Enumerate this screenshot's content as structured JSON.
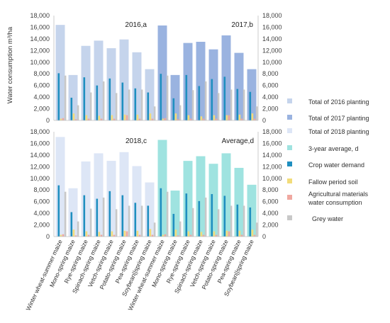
{
  "chart_data": {
    "type": "bar",
    "ylabel": "Water consumption  m³/ha",
    "ylim": [
      0,
      18000
    ],
    "yticks": [
      0,
      2000,
      4000,
      6000,
      8000,
      10000,
      12000,
      14000,
      16000,
      18000
    ],
    "ytick_labels": [
      "0",
      "2,000",
      "4,000",
      "6,000",
      "8,000",
      "10,000",
      "12,000",
      "14,000",
      "16,000",
      "18,000"
    ],
    "categories": [
      "Winter wheat-summer maize",
      "Mono-spring maize",
      "Rye-spring maize",
      "Spinach-spring maize",
      "Vetch-spring maize",
      "Potato-spring maize",
      "Pea-spring maize",
      "Soybean||spring maize"
    ],
    "component_names": [
      "Crop water demand",
      "Fallow period soil",
      "Agricultural materials water consumption",
      "Grey water"
    ],
    "legend": [
      "Total of 2016 planting",
      "Total of 2017 planting",
      "Total of 2018 planting",
      "3-year average, d",
      "Crop water demand",
      "Fallow period soil",
      "Agricultural materials water consumption",
      "Grey water"
    ],
    "colors": {
      "total_2016": "#c5d4ec",
      "total_2017": "#9ab3e0",
      "total_2018": "#dde6f6",
      "total_avg": "#9fe3e0",
      "crop_water_demand": "#1f8fc0",
      "fallow_period_soil": "#f2dc7a",
      "agricultural_materials": "#f0a8a0",
      "grey_water": "#c8c8c8"
    },
    "panels": [
      {
        "label": "2016,a",
        "total": [
          16400,
          7800,
          12800,
          13700,
          12400,
          13900,
          11700,
          8800
        ],
        "crop_water_demand": [
          8100,
          3900,
          7400,
          6000,
          7200,
          6500,
          5500,
          4800
        ],
        "fallow_period_soil": [
          300,
          1200,
          900,
          800,
          900,
          1000,
          1000,
          1200
        ],
        "agricultural_materials": [
          400,
          200,
          300,
          300,
          300,
          900,
          300,
          300
        ],
        "grey_water": [
          7700,
          2600,
          4800,
          6700,
          4700,
          5300,
          5300,
          2400
        ]
      },
      {
        "label": "2017,b",
        "total": [
          16300,
          7800,
          13300,
          13500,
          12200,
          14600,
          11600,
          8800
        ],
        "crop_water_demand": [
          8000,
          3800,
          7800,
          5900,
          7100,
          7500,
          5400,
          4900
        ],
        "fallow_period_soil": [
          300,
          1200,
          900,
          700,
          900,
          900,
          1000,
          1200
        ],
        "agricultural_materials": [
          400,
          200,
          300,
          300,
          300,
          900,
          300,
          300
        ],
        "grey_water": [
          7700,
          2600,
          5200,
          6700,
          4700,
          5300,
          5300,
          2400
        ]
      },
      {
        "label": "2018,c",
        "total": [
          17100,
          8300,
          12900,
          14300,
          13000,
          14500,
          12100,
          9300
        ],
        "crop_water_demand": [
          8800,
          4200,
          7100,
          6500,
          7800,
          7100,
          5800,
          5300
        ],
        "fallow_period_soil": [
          300,
          1200,
          900,
          800,
          900,
          1000,
          1000,
          1300
        ],
        "agricultural_materials": [
          400,
          200,
          300,
          300,
          300,
          900,
          300,
          300
        ],
        "grey_water": [
          7700,
          2600,
          4800,
          6700,
          4700,
          5300,
          5300,
          2400
        ]
      },
      {
        "label": "Average,d",
        "total": [
          16600,
          7900,
          13000,
          13800,
          12500,
          14300,
          11800,
          8900
        ],
        "crop_water_demand": [
          8300,
          3900,
          7400,
          6100,
          7300,
          7000,
          5500,
          5000
        ],
        "fallow_period_soil": [
          300,
          1200,
          900,
          800,
          900,
          1000,
          1000,
          1200
        ],
        "agricultural_materials": [
          400,
          200,
          300,
          300,
          300,
          900,
          300,
          300
        ],
        "grey_water": [
          7700,
          2600,
          4900,
          6700,
          4700,
          5300,
          5300,
          2400
        ]
      }
    ]
  }
}
